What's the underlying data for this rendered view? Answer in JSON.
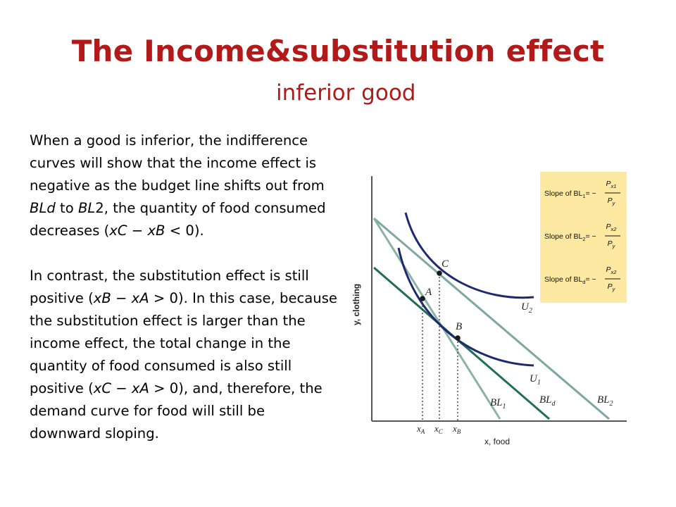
{
  "slide": {
    "title": "The Income&substitution effect",
    "subtitle": "inferior good"
  },
  "body": {
    "p1": [
      {
        "t": "When a good is inferior, the indifference curves will show that the income effect is negative  as the budget line shifts out from ",
        "i": false
      },
      {
        "t": "BLd",
        "i": true
      },
      {
        "t": " to ",
        "i": false
      },
      {
        "t": "BL",
        "i": true
      },
      {
        "t": "2, the quantity of food consumed decreases (",
        "i": false
      },
      {
        "t": "xC",
        "i": true
      },
      {
        "t": " − ",
        "i": false
      },
      {
        "t": "xB",
        "i": true
      },
      {
        "t": " < 0).",
        "i": false
      }
    ],
    "p2": [
      {
        "t": "In contrast, the substitution effect is still positive (",
        "i": false
      },
      {
        "t": "xB",
        "i": true
      },
      {
        "t": " − ",
        "i": false
      },
      {
        "t": "xA",
        "i": true
      },
      {
        "t": " > 0). In this case, because the substitution effect is larger than the income effect, the total change in the quantity of food consumed is also still positive (",
        "i": false
      },
      {
        "t": "xC",
        "i": true
      },
      {
        "t": " − ",
        "i": false
      },
      {
        "t": "xA",
        "i": true
      },
      {
        "t": " > 0), and, therefore, the demand curve for food will still be downward sloping.",
        "i": false
      }
    ]
  },
  "diagram": {
    "y_axis_label": "y, clothing",
    "x_axis_label": "x, food",
    "points": {
      "A": "A",
      "B": "B",
      "C": "C"
    },
    "x_ticks": {
      "xA": "x",
      "xA_sub": "A",
      "xC": "x",
      "xC_sub": "C",
      "xB": "x",
      "xB_sub": "B"
    },
    "curve_labels": {
      "U1": "U",
      "U1_sub": "1",
      "U2": "U",
      "U2_sub": "2",
      "BL1": "BL",
      "BL1_sub": "1",
      "BLd": "BL",
      "BLd_sub": "d",
      "BL2": "BL",
      "BL2_sub": "2"
    },
    "formula_box": {
      "background": "#fde9a2",
      "rows": [
        {
          "prefix": "Slope of BL",
          "sub": "1",
          "eq": "= −",
          "num": "P",
          "num_sub": "x1",
          "den": "P",
          "den_sub": "y"
        },
        {
          "prefix": "Slope of BL",
          "sub": "2",
          "eq": "= −",
          "num": "P",
          "num_sub": "x2",
          "den": "P",
          "den_sub": "y"
        },
        {
          "prefix": "Slope of BL",
          "sub": "d",
          "eq": "= −",
          "num": "P",
          "num_sub": "x2",
          "den": "P",
          "den_sub": "y"
        }
      ]
    },
    "colors": {
      "axis": "#555555",
      "bl1": "#8ab3a8",
      "bld": "#1f6e55",
      "bl2": "#7ea79e",
      "indifference": "#1f2a6e",
      "dots": "#1a1a1a"
    }
  }
}
